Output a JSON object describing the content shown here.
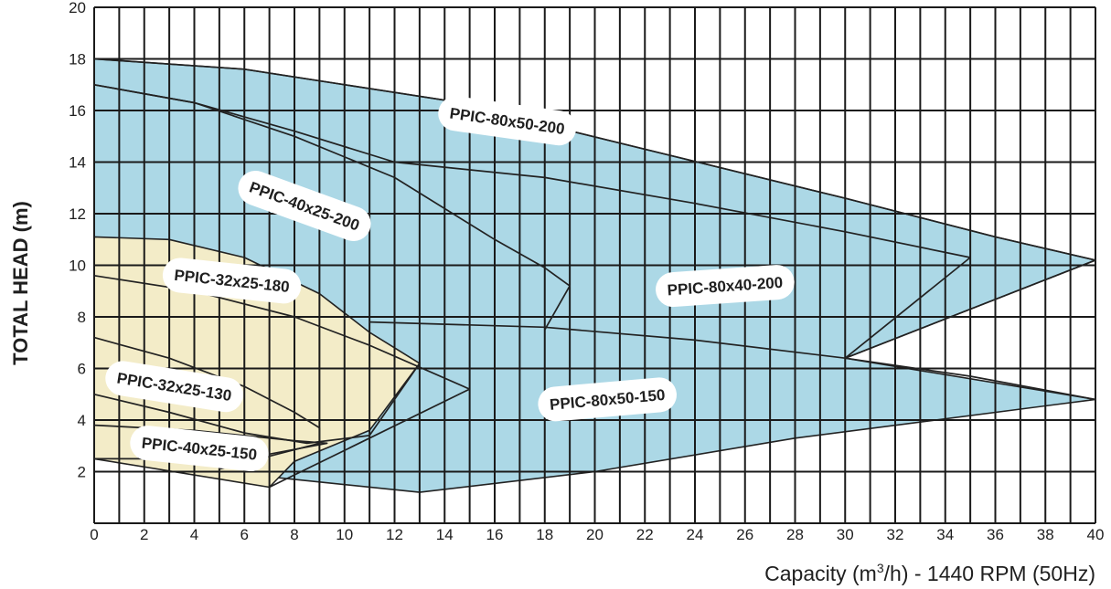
{
  "chart_data": {
    "type": "area",
    "title": "",
    "xlabel_prefix": "Capacity (m",
    "xlabel_superscript": "3",
    "xlabel_suffix": "/h) - 1440 RPM (50Hz)",
    "ylabel": "TOTAL HEAD (m)",
    "xlim": [
      0,
      40
    ],
    "ylim": [
      0,
      20
    ],
    "xticks": [
      0,
      2,
      4,
      6,
      8,
      10,
      12,
      14,
      16,
      18,
      20,
      22,
      24,
      26,
      28,
      30,
      32,
      34,
      36,
      38,
      40
    ],
    "yticks": [
      2,
      4,
      6,
      8,
      10,
      12,
      14,
      16,
      18,
      20
    ],
    "grid": true,
    "colors": {
      "blue_region": "#acd8e6",
      "beige_region": "#f3ecc8",
      "outline": "#222222",
      "grid": "#1a1a1a"
    },
    "regions": [
      {
        "name": "blue-envelope",
        "fill": "#acd8e6",
        "points": [
          [
            0,
            18
          ],
          [
            6,
            17.6
          ],
          [
            14,
            16.4
          ],
          [
            22,
            14.5
          ],
          [
            30,
            12.6
          ],
          [
            36,
            11.1
          ],
          [
            40,
            10.2
          ],
          [
            30,
            6.4
          ],
          [
            40,
            4.8
          ],
          [
            28,
            3.3
          ],
          [
            20,
            2.0
          ],
          [
            13,
            1.2
          ],
          [
            0,
            2.5
          ]
        ]
      },
      {
        "name": "beige-envelope",
        "fill": "#f3ecc8",
        "points": [
          [
            0,
            11.1
          ],
          [
            3,
            11
          ],
          [
            6,
            10.3
          ],
          [
            9,
            8.9
          ],
          [
            11,
            7.4
          ],
          [
            13,
            6.2
          ],
          [
            11,
            3.6
          ],
          [
            8,
            2.4
          ],
          [
            7,
            1.4
          ],
          [
            0,
            2.5
          ]
        ]
      }
    ],
    "curves": [
      {
        "name": "ppic-80x50-200-head",
        "points": [
          [
            0,
            18
          ],
          [
            6,
            17.6
          ],
          [
            14,
            16.4
          ],
          [
            22,
            14.5
          ],
          [
            30,
            12.6
          ],
          [
            36,
            11.1
          ],
          [
            40,
            10.2
          ]
        ]
      },
      {
        "name": "ppic-80x40-200-head",
        "points": [
          [
            0,
            17
          ],
          [
            4,
            16.3
          ],
          [
            8,
            15.2
          ],
          [
            12,
            14
          ],
          [
            18,
            13.4
          ],
          [
            24,
            12.4
          ],
          [
            30,
            11.3
          ],
          [
            35,
            10.3
          ]
        ]
      },
      {
        "name": "ppic-80x40-200-end",
        "points": [
          [
            35,
            10.3
          ],
          [
            30,
            6.4
          ],
          [
            40,
            10.2
          ]
        ]
      },
      {
        "name": "ppic-40x25-200-head",
        "points": [
          [
            0,
            17
          ],
          [
            4,
            16.3
          ],
          [
            8,
            15
          ],
          [
            12,
            13.4
          ],
          [
            16,
            11
          ],
          [
            18,
            9.9
          ],
          [
            19,
            9.2
          ],
          [
            18,
            7.5
          ]
        ]
      },
      {
        "name": "ppic-80x50-150-head",
        "points": [
          [
            11,
            7.8
          ],
          [
            18,
            7.6
          ],
          [
            24,
            7.1
          ],
          [
            30,
            6.4
          ],
          [
            35,
            5.7
          ],
          [
            40,
            4.8
          ]
        ]
      },
      {
        "name": "ppic-32x25-180-upper",
        "points": [
          [
            0,
            9.6
          ],
          [
            4,
            9
          ],
          [
            8,
            8
          ],
          [
            11,
            6.9
          ],
          [
            15,
            5.2
          ]
        ]
      },
      {
        "name": "ppic-32x25-180-lower",
        "points": [
          [
            15,
            5.2
          ],
          [
            7,
            1.4
          ]
        ]
      },
      {
        "name": "ppic-32x25-130-head",
        "points": [
          [
            0,
            7.2
          ],
          [
            3,
            6.4
          ],
          [
            6,
            5.3
          ],
          [
            8,
            4.3
          ],
          [
            9,
            3.7
          ]
        ]
      },
      {
        "name": "ppic-32x25-130-end",
        "points": [
          [
            9,
            3.7
          ],
          [
            9,
            3.1
          ],
          [
            5,
            2.1
          ]
        ]
      },
      {
        "name": "ppic-40x25-150-head",
        "points": [
          [
            0,
            5
          ],
          [
            3,
            4.3
          ],
          [
            6,
            3.5
          ],
          [
            8.5,
            3.1
          ],
          [
            11,
            3.4
          ],
          [
            13,
            6.2
          ]
        ]
      },
      {
        "name": "ppic-40x25-150-bottom",
        "points": [
          [
            0,
            3.8
          ],
          [
            4,
            3.6
          ],
          [
            8,
            3.2
          ],
          [
            9.3,
            3.1
          ],
          [
            6,
            2.5
          ],
          [
            0,
            2.5
          ]
        ]
      }
    ],
    "region_labels": [
      {
        "text": "PPIC-80x50-200",
        "x": 16.5,
        "y": 15.6,
        "rotation": 8
      },
      {
        "text": "PPIC-40x25-200",
        "x": 8.4,
        "y": 12.3,
        "rotation": 20
      },
      {
        "text": "PPIC-32x25-180",
        "x": 5.5,
        "y": 9.4,
        "rotation": 6
      },
      {
        "text": "PPIC-80x40-200",
        "x": 25.2,
        "y": 9.2,
        "rotation": -4
      },
      {
        "text": "PPIC-32x25-130",
        "x": 3.2,
        "y": 5.3,
        "rotation": 9
      },
      {
        "text": "PPIC-80x50-150",
        "x": 20.5,
        "y": 4.8,
        "rotation": -5
      },
      {
        "text": "PPIC-40x25-150",
        "x": 4.2,
        "y": 2.9,
        "rotation": 6
      }
    ]
  }
}
